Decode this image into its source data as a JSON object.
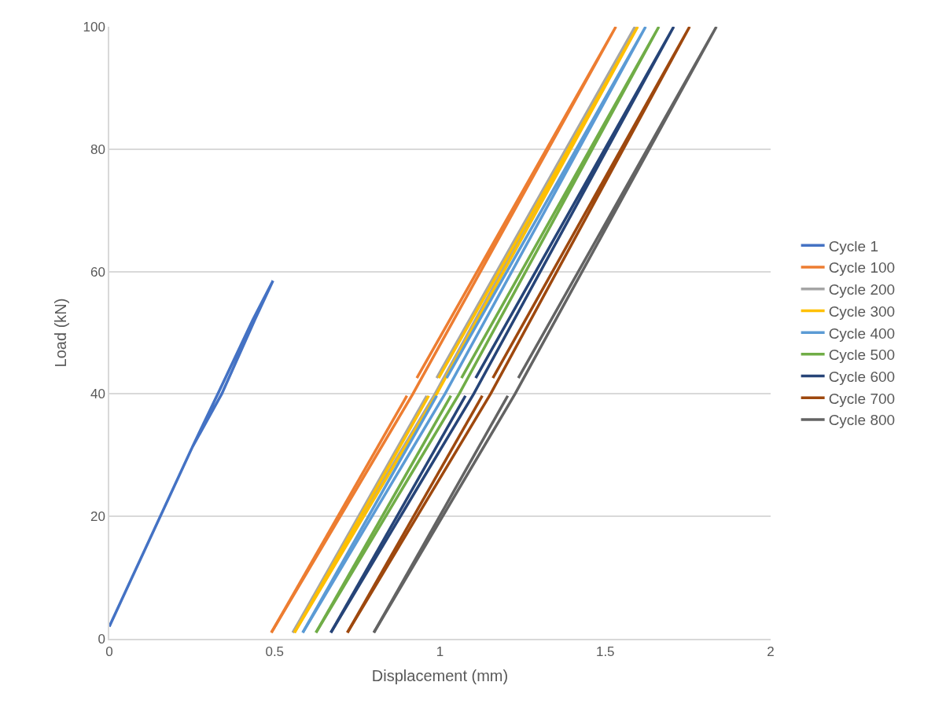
{
  "chart_data": {
    "type": "line",
    "xlabel": "Displacement (mm)",
    "ylabel": "Load (kN)",
    "xlim": [
      0,
      2
    ],
    "xticks": [
      0,
      0.5,
      1,
      1.5,
      2
    ],
    "ylim": [
      0,
      100
    ],
    "yticks": [
      0,
      20,
      40,
      60,
      80,
      100
    ],
    "grid": "y",
    "legend": "right",
    "marker": "none",
    "line_style": "solid",
    "series": [
      {
        "name": "Cycle 1",
        "color": "#4472c4",
        "x": [
          0,
          0.25,
          0.34,
          0.44,
          0.495,
          0.434,
          0.328,
          0.25
        ],
        "values": [
          2,
          31.2,
          40,
          52.1,
          58.5,
          52.1,
          40,
          31.2
        ]
      },
      {
        "name": "Cycle 100",
        "color": "#ed7d31",
        "x": [
          0.49,
          0.918,
          1.532,
          0.93,
          null,
          0.9,
          0.49
        ],
        "values": [
          1,
          40,
          100,
          42.6,
          null,
          39.7,
          1
        ]
      },
      {
        "name": "Cycle 200",
        "color": "#a5a5a5",
        "x": [
          0.555,
          0.985,
          1.59,
          0.99,
          null,
          0.96,
          0.555
        ],
        "values": [
          1,
          40,
          100,
          42.6,
          null,
          39.7,
          1
        ]
      },
      {
        "name": "Cycle 300",
        "color": "#ffc000",
        "x": [
          0.56,
          0.99,
          1.598,
          0.996,
          null,
          0.966,
          0.56
        ],
        "values": [
          1,
          40,
          100,
          42.6,
          null,
          39.7,
          1
        ]
      },
      {
        "name": "Cycle 400",
        "color": "#5b9bd5",
        "x": [
          0.585,
          1.015,
          1.622,
          1.02,
          null,
          0.99,
          0.585
        ],
        "values": [
          1,
          40,
          100,
          42.6,
          null,
          39.7,
          1
        ]
      },
      {
        "name": "Cycle 500",
        "color": "#70ad47",
        "x": [
          0.625,
          1.058,
          1.662,
          1.065,
          null,
          1.033,
          0.625
        ],
        "values": [
          1,
          40,
          100,
          42.6,
          null,
          39.7,
          1
        ]
      },
      {
        "name": "Cycle 600",
        "color": "#264478",
        "x": [
          0.67,
          1.102,
          1.707,
          1.108,
          null,
          1.077,
          0.67
        ],
        "values": [
          1,
          40,
          100,
          42.6,
          null,
          39.7,
          1
        ]
      },
      {
        "name": "Cycle 700",
        "color": "#9e480e",
        "x": [
          0.72,
          1.153,
          1.755,
          1.16,
          null,
          1.128,
          0.72
        ],
        "values": [
          1,
          40,
          100,
          42.6,
          null,
          39.7,
          1
        ]
      },
      {
        "name": "Cycle 800",
        "color": "#636363",
        "x": [
          0.8,
          1.227,
          1.836,
          1.237,
          null,
          1.205,
          0.8
        ],
        "values": [
          1,
          40,
          100,
          42.6,
          null,
          39.7,
          1
        ]
      }
    ]
  }
}
